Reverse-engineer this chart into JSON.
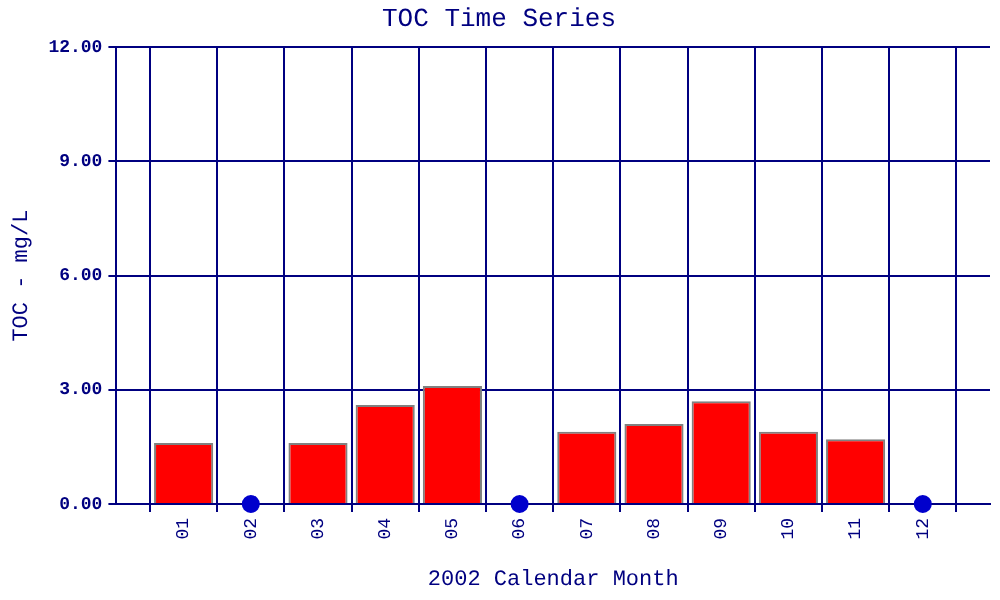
{
  "chart_data": {
    "type": "bar",
    "title": "TOC Time Series",
    "xlabel": "2002 Calendar Month",
    "ylabel": "TOC - mg/L",
    "categories": [
      "01",
      "02",
      "03",
      "04",
      "05",
      "06",
      "07",
      "08",
      "09",
      "10",
      "11",
      "12"
    ],
    "series": [
      {
        "color": "#ff0000",
        "values": [
          1.6,
          null,
          1.6,
          2.6,
          3.1,
          null,
          1.9,
          2.1,
          2.7,
          1.9,
          1.7,
          null
        ]
      },
      {
        "type": "scatter",
        "color": "#0000cc",
        "x": [
          "02",
          "06",
          "12"
        ],
        "values": [
          0,
          0,
          0
        ],
        "marker": "circle"
      }
    ],
    "ylim": [
      0,
      12
    ],
    "yticks": [
      {
        "value": 0,
        "label": "0.00"
      },
      {
        "value": 3,
        "label": "3.00"
      },
      {
        "value": 6,
        "label": "6.00"
      },
      {
        "value": 9,
        "label": "9.00"
      },
      {
        "value": 12,
        "label": "12.00"
      }
    ],
    "grid": true,
    "legend": false
  }
}
